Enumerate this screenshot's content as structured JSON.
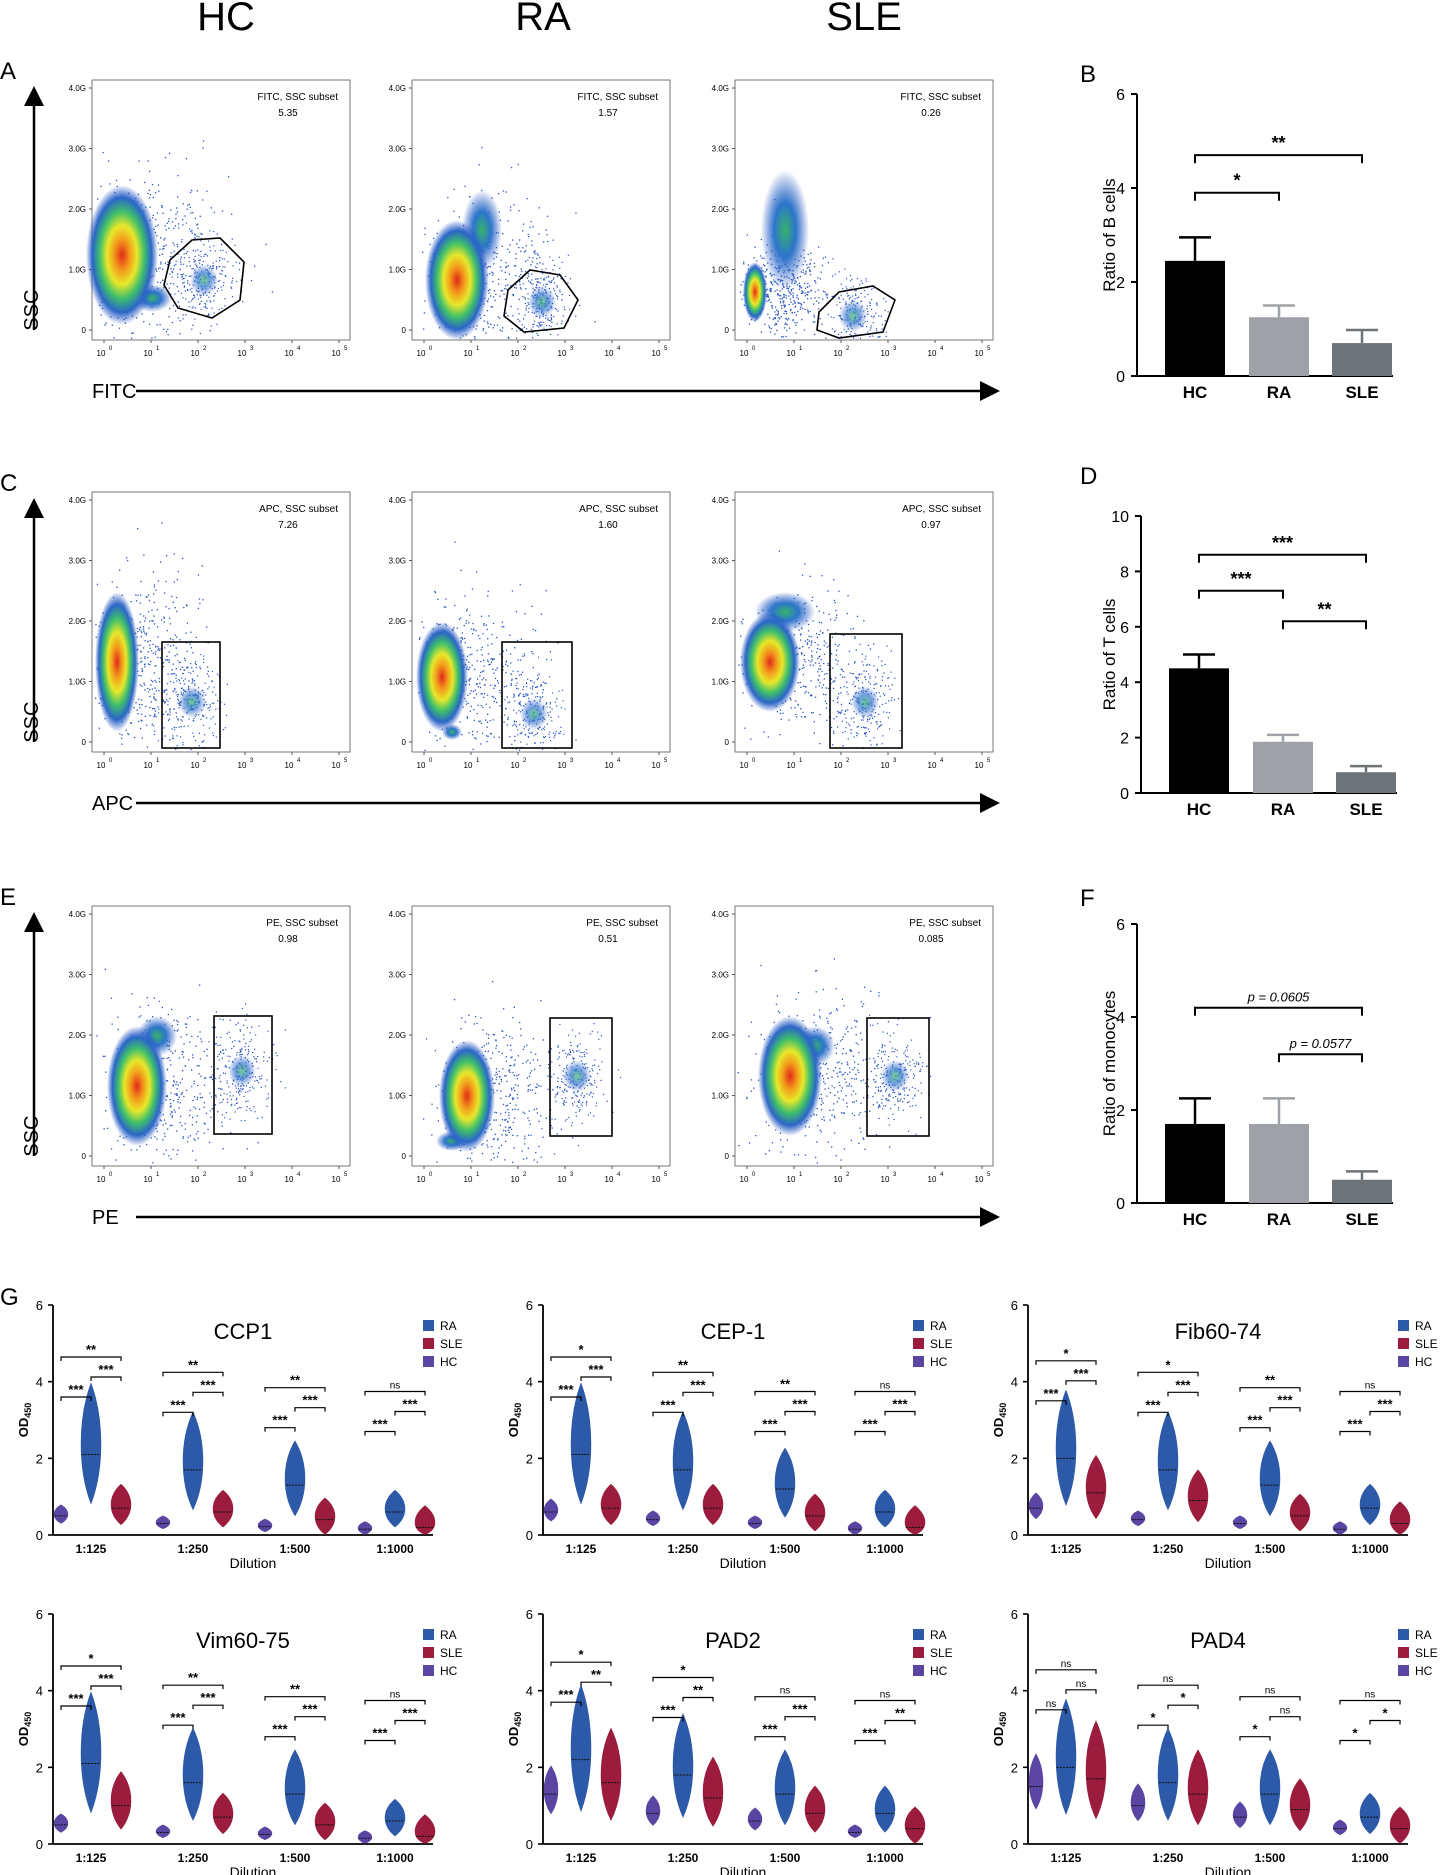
{
  "header": {
    "groups": [
      "HC",
      "RA",
      "SLE"
    ]
  },
  "flow_rows": [
    {
      "panel": "A",
      "marker": "FITC",
      "yaxis": "SSC",
      "plots": [
        {
          "group": "HC",
          "gate_label": "FITC, SSC subset",
          "gate_value": "5.35"
        },
        {
          "group": "RA",
          "gate_label": "FITC, SSC subset",
          "gate_value": "1.57"
        },
        {
          "group": "SLE",
          "gate_label": "FITC, SSC subset",
          "gate_value": "0.26"
        }
      ]
    },
    {
      "panel": "C",
      "marker": "APC",
      "yaxis": "SSC",
      "plots": [
        {
          "group": "HC",
          "gate_label": "APC, SSC subset",
          "gate_value": "7.26"
        },
        {
          "group": "RA",
          "gate_label": "APC, SSC subset",
          "gate_value": "1.60"
        },
        {
          "group": "SLE",
          "gate_label": "APC, SSC subset",
          "gate_value": "0.97"
        }
      ]
    },
    {
      "panel": "E",
      "marker": "PE",
      "yaxis": "SSC",
      "plots": [
        {
          "group": "HC",
          "gate_label": "PE, SSC subset",
          "gate_value": "0.98"
        },
        {
          "group": "RA",
          "gate_label": "PE, SSC subset",
          "gate_value": "0.51"
        },
        {
          "group": "SLE",
          "gate_label": "PE, SSC subset",
          "gate_value": "0.085"
        }
      ]
    }
  ],
  "flow_axis": {
    "y_ticks": [
      "0",
      "1.0G",
      "2.0G",
      "3.0G",
      "4.0G"
    ],
    "x_ticks": [
      "10",
      "10",
      "10",
      "10",
      "10",
      "10"
    ],
    "x_exponents": [
      "0",
      "1",
      "2",
      "3",
      "4",
      "5"
    ]
  },
  "colors": {
    "hc": "#000000",
    "ra": "#9ea2a6",
    "sle": "#6e7378",
    "violin_ra": "#2c5aa8",
    "violin_sle": "#9b1c3c",
    "violin_hc": "#5b45a3"
  },
  "chart_data": [
    {
      "panel": "B",
      "type": "bar",
      "categories": [
        "HC",
        "RA",
        "SLE"
      ],
      "values": [
        2.45,
        1.25,
        0.7
      ],
      "errors": [
        0.5,
        0.25,
        0.28
      ],
      "ylabel": "Ratio of B cells",
      "ylim": [
        0,
        6
      ],
      "yticks": [
        "0",
        "2",
        "4",
        "6"
      ],
      "comparisons": [
        {
          "from": 0,
          "to": 1,
          "label": "*"
        },
        {
          "from": 0,
          "to": 2,
          "label": "**"
        }
      ]
    },
    {
      "panel": "D",
      "type": "bar",
      "categories": [
        "HC",
        "RA",
        "SLE"
      ],
      "values": [
        4.5,
        1.85,
        0.75
      ],
      "errors": [
        0.5,
        0.25,
        0.22
      ],
      "ylabel": "Ratio of T cells",
      "ylim": [
        0,
        10
      ],
      "yticks": [
        "0",
        "2",
        "4",
        "6",
        "8",
        "10"
      ],
      "comparisons": [
        {
          "from": 0,
          "to": 1,
          "label": "***"
        },
        {
          "from": 1,
          "to": 2,
          "label": "**"
        },
        {
          "from": 0,
          "to": 2,
          "label": "***"
        }
      ]
    },
    {
      "panel": "F",
      "type": "bar",
      "categories": [
        "HC",
        "RA",
        "SLE"
      ],
      "values": [
        1.7,
        1.7,
        0.5
      ],
      "errors": [
        0.55,
        0.55,
        0.18
      ],
      "ylabel": "Ratio of monocytes",
      "ylim": [
        0,
        6
      ],
      "yticks": [
        "0",
        "2",
        "4",
        "6"
      ],
      "comparisons": [
        {
          "from": 1,
          "to": 2,
          "label": "p = 0.0577"
        },
        {
          "from": 0,
          "to": 2,
          "label": "p = 0.0605"
        }
      ]
    },
    {
      "panel": "G",
      "type": "violin",
      "ylabel": "OD",
      "ylabel_sub": "450",
      "xlabel": "Dilution",
      "dilutions": [
        "1:125",
        "1:250",
        "1:500",
        "1:1000"
      ],
      "ylim": [
        0,
        6
      ],
      "yticks": [
        "0",
        "2",
        "4",
        "6"
      ],
      "legend": [
        "RA",
        "SLE",
        "HC"
      ],
      "antigens": [
        {
          "name": "CCP1",
          "medians": {
            "HC": [
              0.5,
              0.3,
              0.22,
              0.15
            ],
            "RA": [
              2.1,
              1.7,
              1.3,
              0.6
            ],
            "SLE": [
              0.7,
              0.6,
              0.4,
              0.2
            ]
          },
          "sig": [
            [
              "***",
              "***",
              "**"
            ],
            [
              "***",
              "***",
              "**"
            ],
            [
              "***",
              "***",
              "**"
            ],
            [
              "***",
              "***",
              "ns"
            ]
          ]
        },
        {
          "name": "CEP-1",
          "medians": {
            "HC": [
              0.6,
              0.4,
              0.3,
              0.15
            ],
            "RA": [
              2.1,
              1.7,
              1.2,
              0.6
            ],
            "SLE": [
              0.7,
              0.7,
              0.5,
              0.2
            ]
          },
          "sig": [
            [
              "***",
              "***",
              "*"
            ],
            [
              "***",
              "***",
              "**"
            ],
            [
              "***",
              "***",
              "**"
            ],
            [
              "***",
              "***",
              "ns"
            ]
          ]
        },
        {
          "name": "Fib60-74",
          "medians": {
            "HC": [
              0.7,
              0.4,
              0.3,
              0.15
            ],
            "RA": [
              2.0,
              1.7,
              1.3,
              0.7
            ],
            "SLE": [
              1.1,
              0.9,
              0.5,
              0.3
            ]
          },
          "sig": [
            [
              "***",
              "***",
              "*"
            ],
            [
              "***",
              "***",
              "*"
            ],
            [
              "***",
              "***",
              "**"
            ],
            [
              "***",
              "***",
              "ns"
            ]
          ]
        },
        {
          "name": "Vim60-75",
          "medians": {
            "HC": [
              0.5,
              0.3,
              0.25,
              0.15
            ],
            "RA": [
              2.1,
              1.6,
              1.3,
              0.6
            ],
            "SLE": [
              1.0,
              0.7,
              0.5,
              0.2
            ]
          },
          "sig": [
            [
              "***",
              "***",
              "*"
            ],
            [
              "***",
              "***",
              "**"
            ],
            [
              "***",
              "***",
              "**"
            ],
            [
              "***",
              "***",
              "ns"
            ]
          ]
        },
        {
          "name": "PAD2",
          "medians": {
            "HC": [
              1.3,
              0.8,
              0.6,
              0.3
            ],
            "RA": [
              2.2,
              1.8,
              1.3,
              0.8
            ],
            "SLE": [
              1.6,
              1.2,
              0.8,
              0.4
            ]
          },
          "sig": [
            [
              "***",
              "**",
              "*"
            ],
            [
              "***",
              "**",
              "*"
            ],
            [
              "***",
              "***",
              "ns"
            ],
            [
              "***",
              "**",
              "ns"
            ]
          ]
        },
        {
          "name": "PAD4",
          "medians": {
            "HC": [
              1.5,
              1.0,
              0.7,
              0.4
            ],
            "RA": [
              2.0,
              1.6,
              1.3,
              0.7
            ],
            "SLE": [
              1.7,
              1.3,
              0.9,
              0.4
            ]
          },
          "sig": [
            [
              "ns",
              "ns",
              "ns"
            ],
            [
              "*",
              "*",
              "ns"
            ],
            [
              "*",
              "ns",
              "ns"
            ],
            [
              "*",
              "*",
              "ns"
            ]
          ]
        }
      ]
    }
  ]
}
